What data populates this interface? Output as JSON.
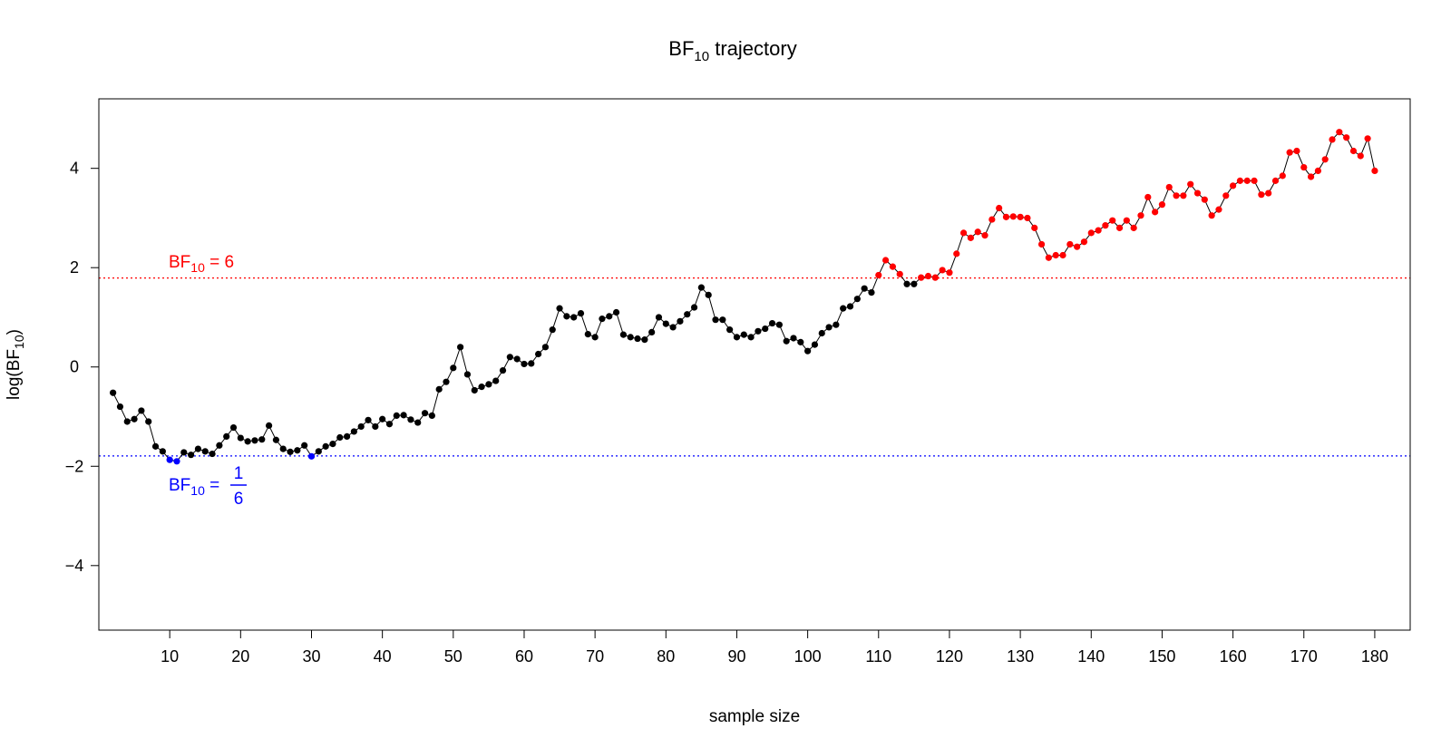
{
  "chart_data": {
    "type": "scatter",
    "title": {
      "base": "BF",
      "sub": "10",
      "rest": " trajectory"
    },
    "xlabel": "sample size",
    "ylabel": {
      "before": "log(BF",
      "sub": "10",
      "after": ")"
    },
    "xlim": [
      0,
      185
    ],
    "ylim": [
      -5.3,
      5.4
    ],
    "xticks": [
      10,
      20,
      30,
      40,
      50,
      60,
      70,
      80,
      90,
      100,
      110,
      120,
      130,
      140,
      150,
      160,
      170,
      180
    ],
    "yticks": [
      -4,
      -2,
      0,
      2,
      4
    ],
    "ytick_labels": [
      "−4",
      "−2",
      "0",
      "2",
      "4"
    ],
    "grid": false,
    "thresholds": [
      {
        "name": "upper",
        "value": 1.792,
        "color": "#ff0000",
        "label": {
          "base": "BF",
          "sub": "10",
          "rest": " = 6"
        }
      },
      {
        "name": "lower",
        "value": -1.792,
        "color": "#0000ff",
        "label": {
          "base": "BF",
          "sub": "10",
          "rest": " = ",
          "num": "1",
          "den": "6"
        }
      }
    ],
    "colors": {
      "neutral": "#000000",
      "above": "#ff0000",
      "below": "#0000ff",
      "line": "#000000"
    },
    "x_start": 2,
    "y": [
      -0.52,
      -0.8,
      -1.1,
      -1.05,
      -0.88,
      -1.1,
      -1.6,
      -1.7,
      -1.87,
      -1.9,
      -1.72,
      -1.77,
      -1.65,
      -1.7,
      -1.75,
      -1.58,
      -1.4,
      -1.22,
      -1.43,
      -1.5,
      -1.48,
      -1.46,
      -1.18,
      -1.47,
      -1.65,
      -1.71,
      -1.68,
      -1.58,
      -1.8,
      -1.7,
      -1.6,
      -1.55,
      -1.42,
      -1.4,
      -1.3,
      -1.2,
      -1.07,
      -1.2,
      -1.05,
      -1.15,
      -0.98,
      -0.97,
      -1.06,
      -1.12,
      -0.93,
      -0.98,
      -0.45,
      -0.3,
      -0.02,
      0.4,
      -0.15,
      -0.47,
      -0.4,
      -0.35,
      -0.28,
      -0.07,
      0.2,
      0.16,
      0.06,
      0.07,
      0.26,
      0.4,
      0.75,
      1.18,
      1.02,
      1.0,
      1.08,
      0.66,
      0.6,
      0.97,
      1.02,
      1.1,
      0.65,
      0.6,
      0.57,
      0.55,
      0.7,
      1.0,
      0.87,
      0.8,
      0.92,
      1.06,
      1.2,
      1.6,
      1.45,
      0.95,
      0.95,
      0.75,
      0.6,
      0.65,
      0.6,
      0.72,
      0.77,
      0.88,
      0.85,
      0.52,
      0.58,
      0.5,
      0.32,
      0.45,
      0.68,
      0.8,
      0.85,
      1.18,
      1.22,
      1.37,
      1.58,
      1.5,
      1.85,
      2.15,
      2.02,
      1.87,
      1.67,
      1.67,
      1.8,
      1.83,
      1.8,
      1.95,
      1.9,
      2.28,
      2.7,
      2.6,
      2.72,
      2.65,
      2.97,
      3.2,
      3.02,
      3.03,
      3.02,
      3.0,
      2.8,
      2.47,
      2.2,
      2.25,
      2.25,
      2.47,
      2.42,
      2.52,
      2.7,
      2.75,
      2.85,
      2.95,
      2.8,
      2.95,
      2.8,
      3.05,
      3.42,
      3.12,
      3.27,
      3.62,
      3.45,
      3.45,
      3.68,
      3.5,
      3.37,
      3.05,
      3.17,
      3.45,
      3.65,
      3.75,
      3.75,
      3.75,
      3.47,
      3.5,
      3.75,
      3.85,
      4.32,
      4.35,
      4.02,
      3.83,
      3.95,
      4.18,
      4.58,
      4.73,
      4.62,
      4.35,
      4.25,
      4.6,
      3.95
    ]
  }
}
